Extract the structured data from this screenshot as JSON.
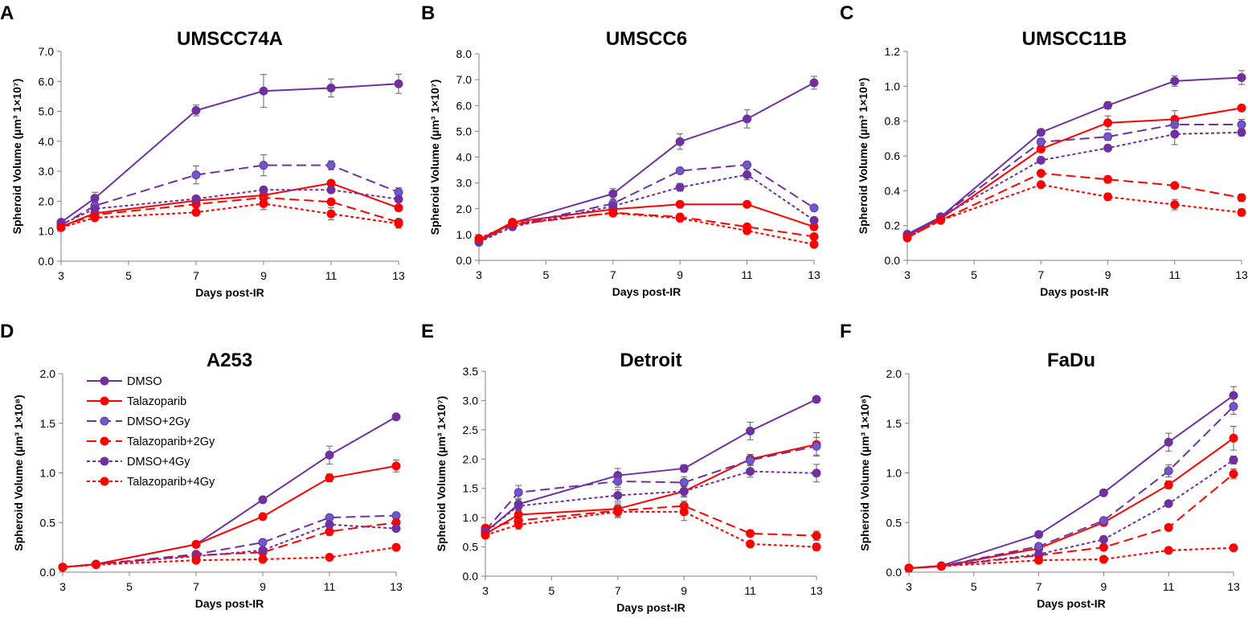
{
  "figure": {
    "series_styles": [
      {
        "name": "DMSO",
        "color": "#7030A0",
        "dash": "solid"
      },
      {
        "name": "Talazoparib",
        "color": "#FF0000",
        "dash": "solid"
      },
      {
        "name": "DMSO+2Gy",
        "color": "#7030A0",
        "dash": "longdash",
        "marker_fill": "#6A5ACD"
      },
      {
        "name": "Talazoparib+2Gy",
        "color": "#FF0000",
        "dash": "longdash"
      },
      {
        "name": "DMSO+4Gy",
        "color": "#7030A0",
        "dash": "shortdash"
      },
      {
        "name": "Talazoparib+4Gy",
        "color": "#FF0000",
        "dash": "shortdash"
      }
    ]
  },
  "chart_data": [
    {
      "type": "line",
      "letter": "A",
      "title": "UMSCC74A",
      "xlabel": "Days post-IR",
      "ylabel": "Spheroid Volume (µm³ 1×10⁷)",
      "x": [
        3,
        4,
        7,
        9,
        11,
        13
      ],
      "xticks": [
        "3",
        "5",
        "7",
        "9",
        "11",
        "13"
      ],
      "xtick_values": [
        3,
        5,
        7,
        9,
        11,
        13
      ],
      "xlim": [
        3,
        13
      ],
      "ylim": [
        0,
        7
      ],
      "yticks": [
        "0.0",
        "1.0",
        "2.0",
        "3.0",
        "4.0",
        "5.0",
        "6.0",
        "7.0"
      ],
      "ytick_values": [
        0,
        1,
        2,
        3,
        4,
        5,
        6,
        7
      ],
      "series": [
        {
          "name": "DMSO",
          "values": [
            1.3,
            2.1,
            5.03,
            5.68,
            5.78,
            5.92
          ],
          "errors": [
            0.08,
            0.2,
            0.18,
            0.55,
            0.3,
            0.32
          ]
        },
        {
          "name": "Talazoparib",
          "values": [
            1.15,
            1.6,
            2.02,
            2.2,
            2.6,
            1.78
          ],
          "errors": [
            0.05,
            0.1,
            0.1,
            0.12,
            0.1,
            0.1
          ]
        },
        {
          "name": "DMSO+2Gy",
          "values": [
            1.2,
            1.85,
            2.88,
            3.2,
            3.2,
            2.3
          ],
          "errors": [
            0.05,
            0.12,
            0.3,
            0.35,
            0.15,
            0.15
          ]
        },
        {
          "name": "Talazoparib+2Gy",
          "values": [
            1.15,
            1.55,
            1.9,
            2.12,
            1.98,
            1.3
          ],
          "errors": [
            0.05,
            0.08,
            0.1,
            0.12,
            0.1,
            0.1
          ]
        },
        {
          "name": "DMSO+4Gy",
          "values": [
            1.22,
            1.75,
            2.08,
            2.38,
            2.38,
            2.07
          ],
          "errors": [
            0.05,
            0.1,
            0.1,
            0.1,
            0.1,
            0.1
          ]
        },
        {
          "name": "Talazoparib+4Gy",
          "values": [
            1.12,
            1.45,
            1.63,
            1.92,
            1.58,
            1.25
          ],
          "errors": [
            0.05,
            0.08,
            0.1,
            0.2,
            0.2,
            0.15
          ]
        }
      ]
    },
    {
      "type": "line",
      "letter": "B",
      "title": "UMSCC6",
      "xlabel": "Days post-IR",
      "ylabel": "Spheroid Volume (µm³ 1×10⁷)",
      "x": [
        3,
        4,
        7,
        9,
        11,
        13
      ],
      "xticks": [
        "3",
        "5",
        "7",
        "9",
        "11",
        "13"
      ],
      "xtick_values": [
        3,
        5,
        7,
        9,
        11,
        13
      ],
      "xlim": [
        3,
        13
      ],
      "ylim": [
        0,
        8
      ],
      "yticks": [
        "0.0",
        "1.0",
        "2.0",
        "3.0",
        "4.0",
        "5.0",
        "6.0",
        "7.0",
        "8.0"
      ],
      "ytick_values": [
        0,
        1,
        2,
        3,
        4,
        5,
        6,
        7,
        8
      ],
      "series": [
        {
          "name": "DMSO",
          "values": [
            0.72,
            1.45,
            2.58,
            4.6,
            5.48,
            6.88
          ],
          "errors": [
            0.1,
            0.1,
            0.2,
            0.3,
            0.35,
            0.25
          ]
        },
        {
          "name": "Talazoparib",
          "values": [
            0.78,
            1.48,
            1.98,
            2.17,
            2.17,
            1.3
          ],
          "errors": [
            0.05,
            0.1,
            0.1,
            0.1,
            0.08,
            0.08
          ]
        },
        {
          "name": "DMSO+2Gy",
          "values": [
            0.75,
            1.35,
            2.2,
            3.47,
            3.7,
            2.03
          ],
          "errors": [
            0.05,
            0.1,
            0.1,
            0.1,
            0.1,
            0.1
          ]
        },
        {
          "name": "Talazoparib+2Gy",
          "values": [
            0.8,
            1.38,
            1.85,
            1.68,
            1.3,
            0.92
          ],
          "errors": [
            0.05,
            0.1,
            0.1,
            0.08,
            0.08,
            0.08
          ]
        },
        {
          "name": "DMSO+4Gy",
          "values": [
            0.7,
            1.3,
            2.1,
            2.83,
            3.32,
            1.55
          ],
          "errors": [
            0.05,
            0.1,
            0.1,
            0.15,
            0.2,
            0.1
          ]
        },
        {
          "name": "Talazoparib+4Gy",
          "values": [
            0.85,
            1.42,
            1.83,
            1.63,
            1.15,
            0.62
          ],
          "errors": [
            0.05,
            0.1,
            0.1,
            0.08,
            0.1,
            0.06
          ]
        }
      ]
    },
    {
      "type": "line",
      "letter": "C",
      "title": "UMSCC11B",
      "xlabel": "Days post-IR",
      "ylabel": "Spheroid Volume (µm³ 1×10⁸)",
      "x": [
        3,
        4,
        7,
        9,
        11,
        13
      ],
      "xticks": [
        "3",
        "5",
        "7",
        "9",
        "11",
        "13"
      ],
      "xtick_values": [
        3,
        5,
        7,
        9,
        11,
        13
      ],
      "xlim": [
        3,
        13
      ],
      "ylim": [
        0,
        1.2
      ],
      "yticks": [
        "0.0",
        "0.2",
        "0.4",
        "0.6",
        "0.8",
        "1.0",
        "1.2"
      ],
      "ytick_values": [
        0,
        0.2,
        0.4,
        0.6,
        0.8,
        1.0,
        1.2
      ],
      "series": [
        {
          "name": "DMSO",
          "values": [
            0.15,
            0.25,
            0.735,
            0.89,
            1.03,
            1.05
          ],
          "errors": [
            0.01,
            0.01,
            0.015,
            0.02,
            0.03,
            0.04
          ]
        },
        {
          "name": "Talazoparib",
          "values": [
            0.14,
            0.24,
            0.64,
            0.79,
            0.81,
            0.875
          ],
          "errors": [
            0.01,
            0.01,
            0.02,
            0.04,
            0.05,
            0.015
          ]
        },
        {
          "name": "DMSO+2Gy",
          "values": [
            0.14,
            0.25,
            0.68,
            0.71,
            0.78,
            0.78
          ],
          "errors": [
            0.01,
            0.01,
            0.02,
            0.02,
            0.02,
            0.03
          ]
        },
        {
          "name": "Talazoparib+2Gy",
          "values": [
            0.13,
            0.23,
            0.5,
            0.465,
            0.43,
            0.36
          ],
          "errors": [
            0.01,
            0.01,
            0.015,
            0.02,
            0.015,
            0.02
          ]
        },
        {
          "name": "DMSO+4Gy",
          "values": [
            0.14,
            0.25,
            0.575,
            0.645,
            0.725,
            0.735
          ],
          "errors": [
            0.01,
            0.01,
            0.015,
            0.015,
            0.06,
            0.02
          ]
        },
        {
          "name": "Talazoparib+4Gy",
          "values": [
            0.13,
            0.23,
            0.435,
            0.365,
            0.32,
            0.275
          ],
          "errors": [
            0.01,
            0.01,
            0.015,
            0.02,
            0.03,
            0.02
          ]
        }
      ]
    },
    {
      "type": "line",
      "letter": "D",
      "title": "A253",
      "xlabel": "Days post-IR",
      "ylabel": "Spheroid Volume (µm³ 1×10⁸)",
      "x": [
        3,
        4,
        7,
        9,
        11,
        13
      ],
      "xticks": [
        "3",
        "5",
        "7",
        "9",
        "11",
        "13"
      ],
      "xtick_values": [
        3,
        5,
        7,
        9,
        11,
        13
      ],
      "xlim": [
        3,
        13
      ],
      "ylim": [
        0,
        2.0
      ],
      "yticks": [
        "0.0",
        "0.5",
        "1.0",
        "1.5",
        "2.0"
      ],
      "ytick_values": [
        0,
        0.5,
        1.0,
        1.5,
        2.0
      ],
      "legend": "upper-left",
      "series": [
        {
          "name": "DMSO",
          "values": [
            0.05,
            0.08,
            0.28,
            0.73,
            1.18,
            1.565
          ],
          "errors": [
            0.005,
            0.01,
            0.01,
            0.02,
            0.09,
            0.02
          ]
        },
        {
          "name": "Talazoparib",
          "values": [
            0.05,
            0.08,
            0.28,
            0.56,
            0.95,
            1.07
          ],
          "errors": [
            0.005,
            0.01,
            0.01,
            0.02,
            0.04,
            0.06
          ]
        },
        {
          "name": "DMSO+2Gy",
          "values": [
            0.05,
            0.08,
            0.18,
            0.3,
            0.55,
            0.57
          ],
          "errors": [
            0.005,
            0.01,
            0.01,
            0.02,
            0.02,
            0.02
          ]
        },
        {
          "name": "Talazoparib+2Gy",
          "values": [
            0.05,
            0.08,
            0.17,
            0.2,
            0.41,
            0.5
          ],
          "errors": [
            0.005,
            0.01,
            0.01,
            0.02,
            0.04,
            0.03
          ]
        },
        {
          "name": "DMSO+4Gy",
          "values": [
            0.05,
            0.08,
            0.16,
            0.22,
            0.48,
            0.44
          ],
          "errors": [
            0.005,
            0.01,
            0.01,
            0.02,
            0.02,
            0.02
          ]
        },
        {
          "name": "Talazoparib+4Gy",
          "values": [
            0.05,
            0.075,
            0.12,
            0.13,
            0.15,
            0.25
          ],
          "errors": [
            0.005,
            0.01,
            0.01,
            0.01,
            0.01,
            0.01
          ]
        }
      ]
    },
    {
      "type": "line",
      "letter": "E",
      "title": "Detroit",
      "xlabel": "Days post-IR",
      "ylabel": "Spheroid Volume (µm³ 1×10⁷)",
      "x": [
        3,
        4,
        7,
        9,
        11,
        13
      ],
      "xticks": [
        "3",
        "5",
        "7",
        "9",
        "11",
        "13"
      ],
      "xtick_values": [
        3,
        5,
        7,
        9,
        11,
        13
      ],
      "xlim": [
        3,
        13
      ],
      "ylim": [
        0,
        3.5
      ],
      "yticks": [
        "0.0",
        "0.5",
        "1.0",
        "1.5",
        "2.0",
        "2.5",
        "3.0",
        "3.5"
      ],
      "ytick_values": [
        0,
        0.5,
        1.0,
        1.5,
        2.0,
        2.5,
        3.0,
        3.5
      ],
      "series": [
        {
          "name": "DMSO",
          "values": [
            0.75,
            1.23,
            1.72,
            1.84,
            2.48,
            3.02
          ],
          "errors": [
            0.05,
            0.1,
            0.12,
            0.06,
            0.15,
            0.04
          ]
        },
        {
          "name": "Talazoparib",
          "values": [
            0.72,
            1.05,
            1.15,
            1.45,
            2.0,
            2.25
          ],
          "errors": [
            0.05,
            0.1,
            0.1,
            0.08,
            0.08,
            0.2
          ]
        },
        {
          "name": "DMSO+2Gy",
          "values": [
            0.78,
            1.43,
            1.62,
            1.6,
            1.98,
            2.22
          ],
          "errors": [
            0.05,
            0.12,
            0.1,
            0.1,
            0.08,
            0.15
          ]
        },
        {
          "name": "Talazoparib+2Gy",
          "values": [
            0.82,
            0.95,
            1.12,
            1.2,
            0.73,
            0.69
          ],
          "errors": [
            0.05,
            0.08,
            0.1,
            0.08,
            0.05,
            0.08
          ]
        },
        {
          "name": "DMSO+4Gy",
          "values": [
            0.76,
            1.2,
            1.38,
            1.45,
            1.79,
            1.76
          ],
          "errors": [
            0.05,
            0.08,
            0.1,
            0.1,
            0.1,
            0.15
          ]
        },
        {
          "name": "Talazoparib+4Gy",
          "values": [
            0.7,
            0.88,
            1.1,
            1.1,
            0.55,
            0.5
          ],
          "errors": [
            0.05,
            0.08,
            0.1,
            0.15,
            0.04,
            0.06
          ]
        }
      ]
    },
    {
      "type": "line",
      "letter": "F",
      "title": "FaDu",
      "xlabel": "Days post-IR",
      "ylabel": "Spheroid Volume (µm³ 1×10⁸)",
      "x": [
        3,
        4,
        7,
        9,
        11,
        13
      ],
      "xticks": [
        "3",
        "5",
        "7",
        "9",
        "11",
        "13"
      ],
      "xtick_values": [
        3,
        5,
        7,
        9,
        11,
        13
      ],
      "xlim": [
        3,
        13
      ],
      "ylim": [
        0,
        2.0
      ],
      "yticks": [
        "0.0",
        "0.5",
        "1.0",
        "1.5",
        "2.0"
      ],
      "ytick_values": [
        0,
        0.5,
        1.0,
        1.5,
        2.0
      ],
      "series": [
        {
          "name": "DMSO",
          "values": [
            0.04,
            0.065,
            0.38,
            0.8,
            1.31,
            1.78
          ],
          "errors": [
            0.005,
            0.01,
            0.02,
            0.02,
            0.09,
            0.09
          ]
        },
        {
          "name": "Talazoparib",
          "values": [
            0.04,
            0.06,
            0.24,
            0.5,
            0.88,
            1.35
          ],
          "errors": [
            0.005,
            0.01,
            0.02,
            0.02,
            0.04,
            0.12
          ]
        },
        {
          "name": "DMSO+2Gy",
          "values": [
            0.04,
            0.06,
            0.26,
            0.52,
            1.02,
            1.67
          ],
          "errors": [
            0.005,
            0.01,
            0.02,
            0.02,
            0.06,
            0.08
          ]
        },
        {
          "name": "Talazoparib+2Gy",
          "values": [
            0.04,
            0.06,
            0.17,
            0.25,
            0.45,
            0.99
          ],
          "errors": [
            0.005,
            0.01,
            0.01,
            0.02,
            0.02,
            0.05
          ]
        },
        {
          "name": "DMSO+4Gy",
          "values": [
            0.04,
            0.06,
            0.18,
            0.33,
            0.69,
            1.13
          ],
          "errors": [
            0.005,
            0.01,
            0.01,
            0.02,
            0.02,
            0.04
          ]
        },
        {
          "name": "Talazoparib+4Gy",
          "values": [
            0.04,
            0.06,
            0.12,
            0.13,
            0.22,
            0.245
          ],
          "errors": [
            0.005,
            0.01,
            0.01,
            0.01,
            0.01,
            0.01
          ]
        }
      ]
    }
  ]
}
